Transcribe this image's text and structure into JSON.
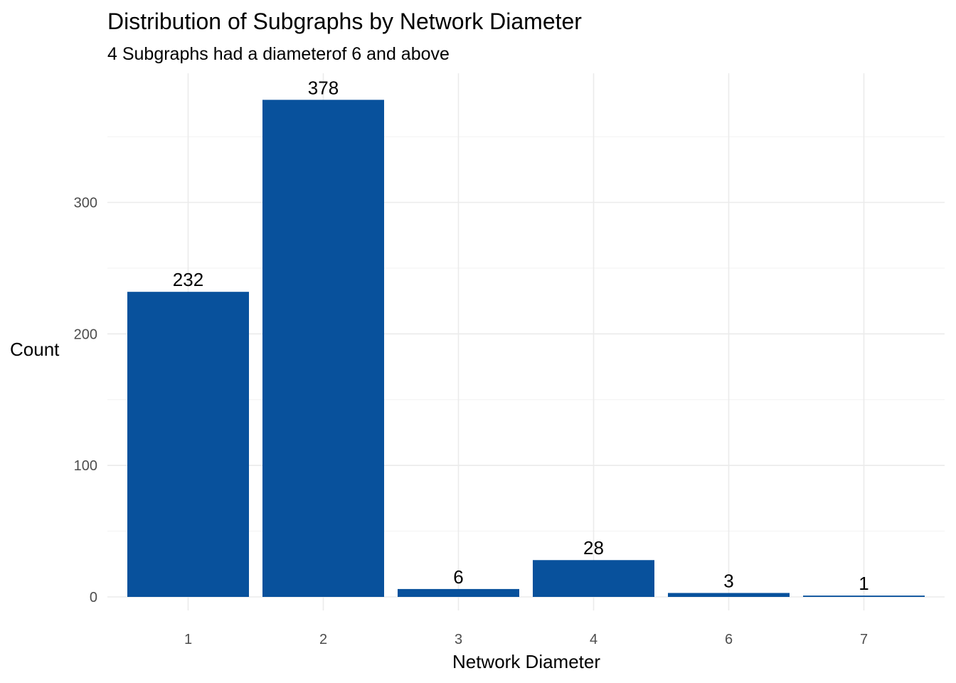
{
  "chart_data": {
    "type": "bar",
    "title": "Distribution of Subgraphs by Network Diameter",
    "subtitle": "4 Subgraphs had a diameterof 6 and above",
    "xlabel": "Network Diameter",
    "ylabel": "Count",
    "categories": [
      "1",
      "2",
      "3",
      "4",
      "6",
      "7"
    ],
    "values": [
      232,
      378,
      6,
      28,
      3,
      1
    ],
    "ylim": [
      0,
      400
    ],
    "yticks": [
      0,
      100,
      200,
      300
    ],
    "grid": true,
    "legend": "none",
    "bar_color": "#08519C"
  }
}
